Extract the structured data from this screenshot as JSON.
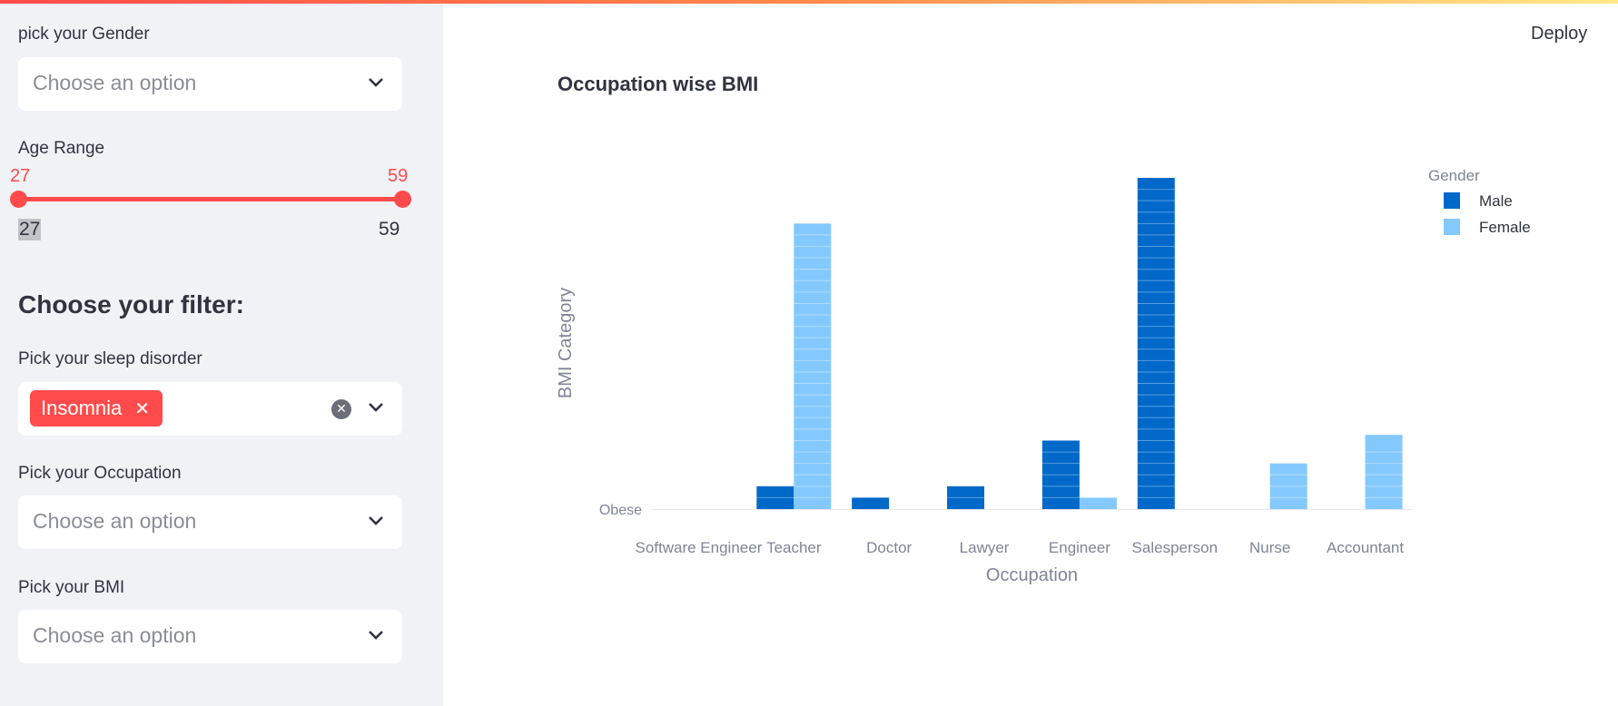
{
  "app": {
    "deploy_label": "Deploy"
  },
  "sidebar": {
    "gender": {
      "label": "pick your Gender",
      "placeholder": "Choose an option"
    },
    "age": {
      "label": "Age Range",
      "min_value": "27",
      "max_value": "59",
      "min_tick": "27",
      "max_tick": "59"
    },
    "filter_heading": "Choose your filter:",
    "sleep": {
      "label": "Pick your sleep disorder",
      "selected_tag": "Insomnia"
    },
    "occupation": {
      "label": "Pick your Occupation",
      "placeholder": "Choose an option"
    },
    "bmi": {
      "label": "Pick your BMI",
      "placeholder": "Choose an option"
    }
  },
  "colors": {
    "accent": "#ff4b4b",
    "male": "#0068c9",
    "female": "#83c9ff"
  },
  "chart_data": {
    "type": "bar",
    "title": "Occupation wise BMI",
    "xlabel": "Occupation",
    "ylabel": "BMI Category",
    "y_tick_labels": [
      "Obese"
    ],
    "legend_title": "Gender",
    "legend_position": "top-right",
    "categories": [
      "Software Engineer",
      "Teacher",
      "Doctor",
      "Lawyer",
      "Engineer",
      "Salesperson",
      "Nurse",
      "Accountant"
    ],
    "series": [
      {
        "name": "Male",
        "color": "#0068c9",
        "values": [
          0,
          2,
          1,
          2,
          6,
          29,
          0,
          0
        ]
      },
      {
        "name": "Female",
        "color": "#83c9ff",
        "values": [
          0,
          25,
          0,
          0,
          1,
          0,
          4,
          6.5
        ]
      }
    ]
  }
}
